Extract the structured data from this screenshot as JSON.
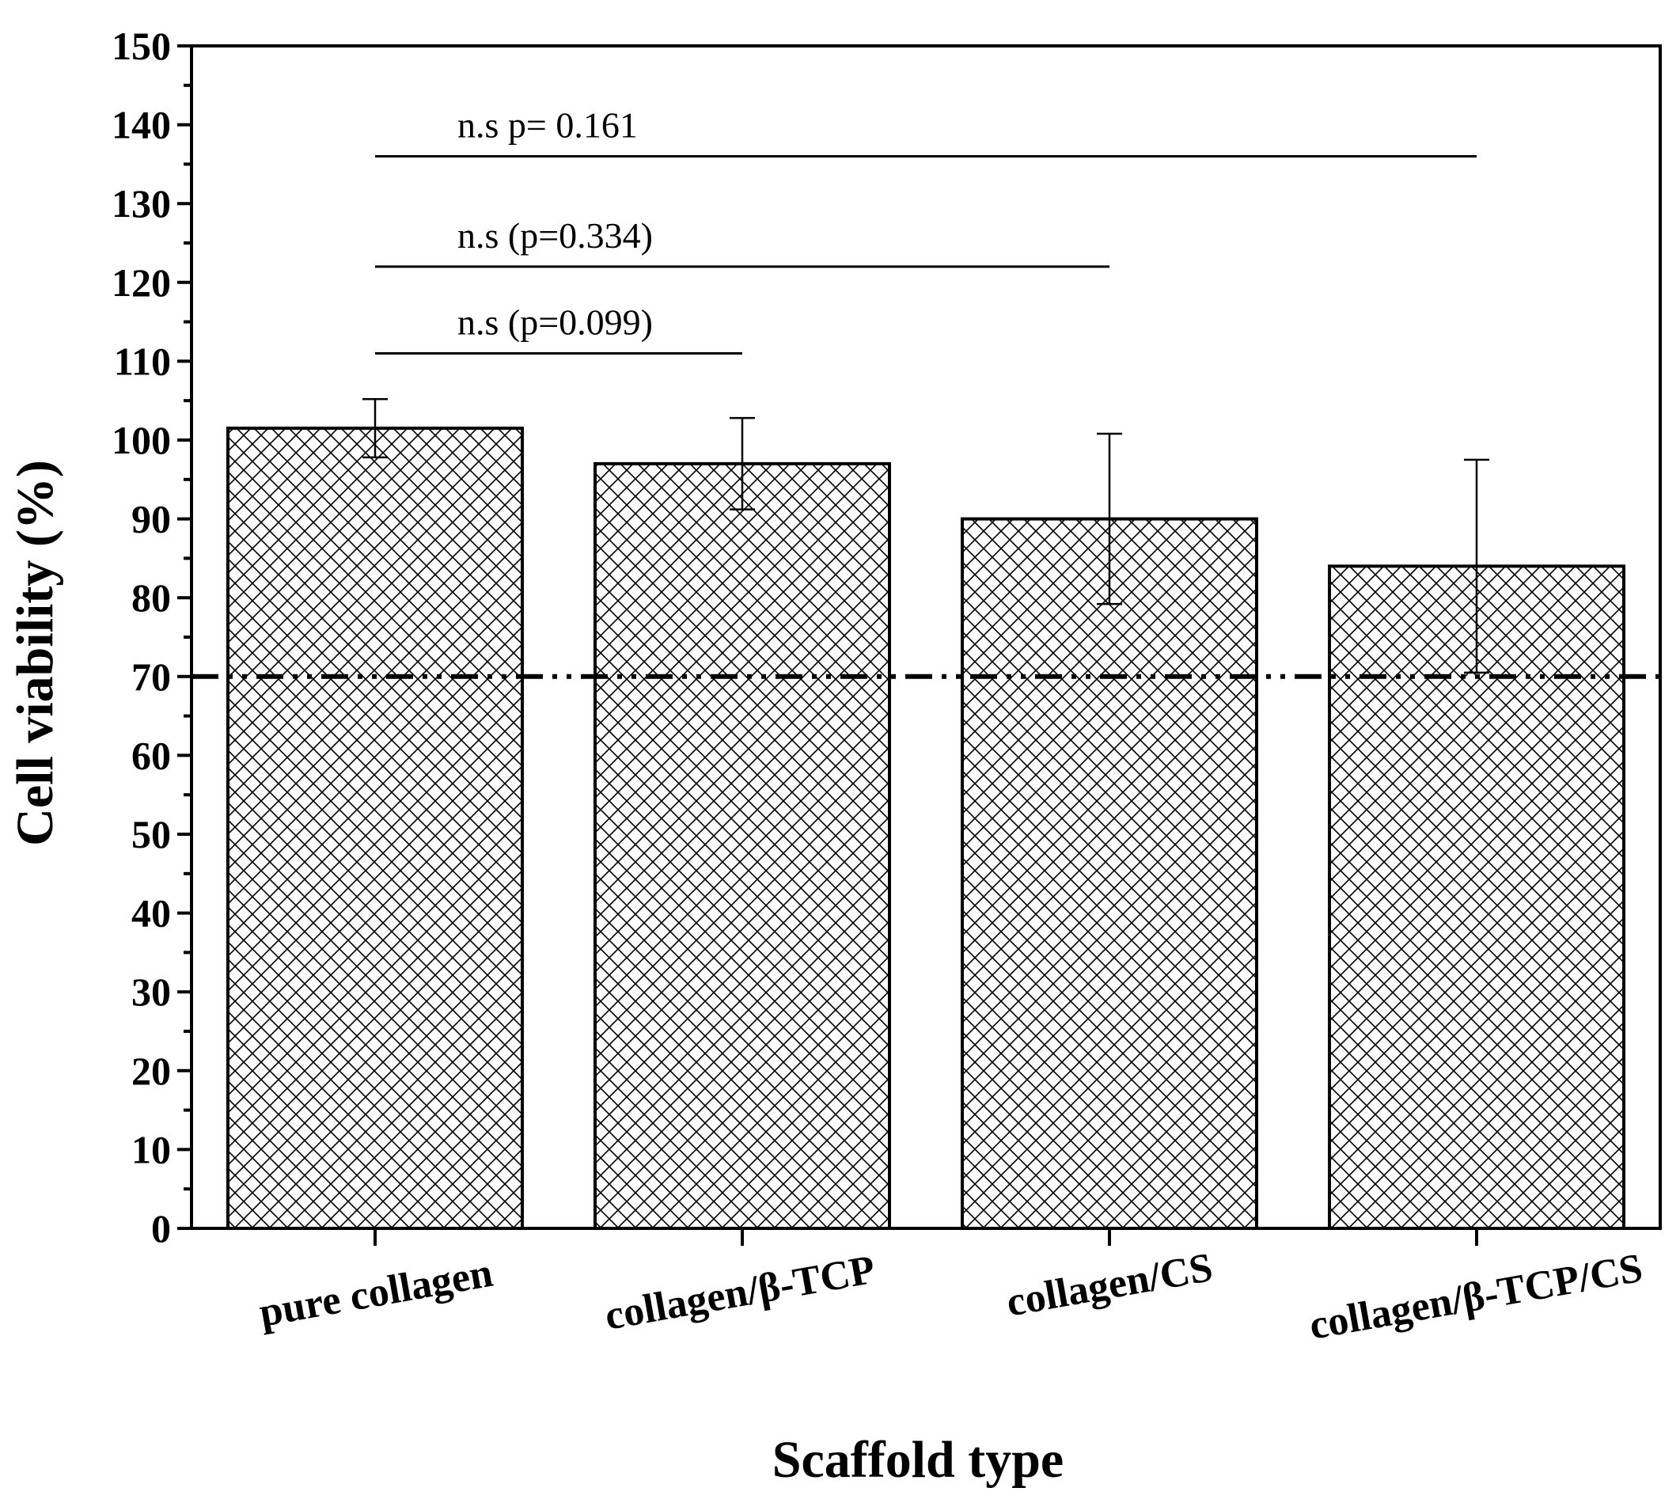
{
  "chart_data": {
    "type": "bar",
    "title": "",
    "xlabel": "Scaffold type",
    "ylabel": "Cell viability (%)",
    "ylim": [
      0,
      150
    ],
    "yticks": [
      0,
      10,
      20,
      30,
      40,
      50,
      60,
      70,
      80,
      90,
      100,
      110,
      120,
      130,
      140,
      150
    ],
    "ytick_labels": [
      "0",
      "10",
      "20",
      "30",
      "40",
      "50",
      "60",
      "70",
      "80",
      "90",
      "100",
      "110",
      "120",
      "130",
      "140",
      "150"
    ],
    "categories": [
      "pure collagen",
      "collagen/β-TCP",
      "collagen/CS",
      "collagen/β-TCP/CS"
    ],
    "values": [
      101.5,
      97,
      90,
      84
    ],
    "errors": [
      3.7,
      5.8,
      10.8,
      13.5
    ],
    "bar_pattern": "crosshatch",
    "reference_line": {
      "y": 70,
      "style": "dash-dot"
    },
    "significance": [
      {
        "from": 0,
        "to": 1,
        "y": 111,
        "label": "n.s (p=0.099)"
      },
      {
        "from": 0,
        "to": 2,
        "y": 122,
        "label": "n.s (p=0.334)"
      },
      {
        "from": 0,
        "to": 3,
        "y": 136,
        "label": "n.s p= 0.161"
      }
    ],
    "grid": false,
    "colors": {
      "bar_fill": "#ffffff",
      "hatch": "#000000",
      "axis": "#000000"
    }
  }
}
